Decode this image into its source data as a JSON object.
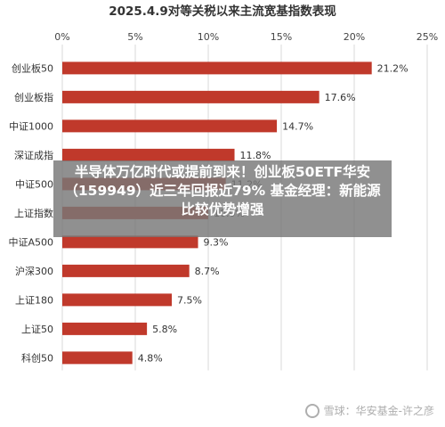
{
  "chart_data": {
    "type": "bar",
    "orientation": "horizontal",
    "title": "2025.4.9对等关税以来主流宽基指数表现",
    "categories": [
      "创业板50",
      "创业板指",
      "中证1000",
      "深证成指",
      "中证500",
      "上证指数",
      "中证A500",
      "沪深300",
      "上证180",
      "上证50",
      "科创50"
    ],
    "values": [
      21.2,
      17.6,
      14.7,
      11.8,
      11.2,
      10.0,
      9.3,
      8.7,
      7.5,
      5.8,
      4.8
    ],
    "value_labels": [
      "21.2%",
      "17.6%",
      "14.7%",
      "11.8%",
      "11.2%",
      "10.0%",
      "9.3%",
      "8.7%",
      "7.5%",
      "5.8%",
      "4.8%"
    ],
    "xlim": [
      0,
      25
    ],
    "xticks": [
      "0%",
      "5%",
      "10%",
      "15%",
      "20%",
      "25%"
    ],
    "bar_color": "#c0392b",
    "grid": true,
    "axis_position": "top"
  },
  "overlay_text": "半导体万亿时代或提前到来！创业板50ETF华安（159949）近三年回报近79% 基金经理：新能源比较优势增强",
  "watermark": "雪球：华安基金-许之彦"
}
